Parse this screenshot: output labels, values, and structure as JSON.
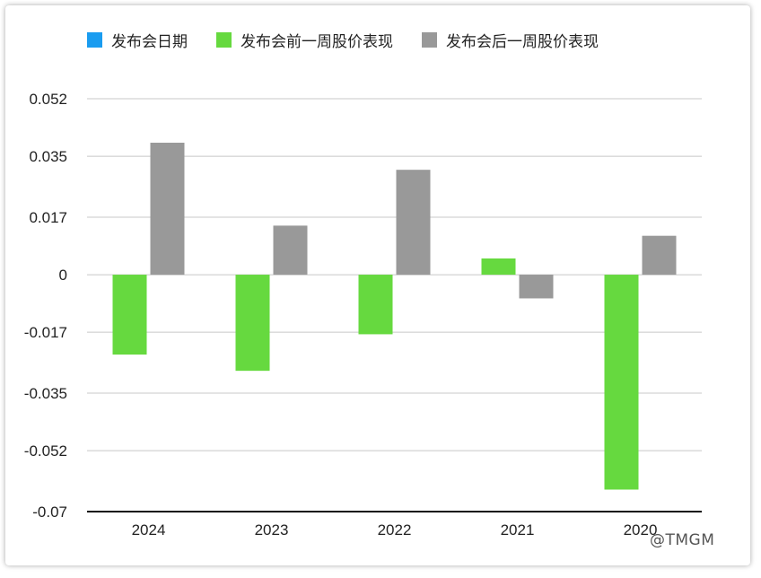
{
  "legend": {
    "items": [
      {
        "label": "发布会日期",
        "color": "#1a9cf0"
      },
      {
        "label": "发布会前一周股价表现",
        "color": "#66d93f"
      },
      {
        "label": "发布会后一周股价表现",
        "color": "#999999"
      }
    ]
  },
  "watermark": "@TMGM",
  "chart_data": {
    "type": "bar",
    "categories": [
      "2024",
      "2023",
      "2022",
      "2021",
      "2020"
    ],
    "series": [
      {
        "name": "发布会前一周股价表现",
        "color": "#66d93f",
        "values": [
          -0.0236,
          -0.0284,
          -0.0176,
          0.0048,
          -0.0635
        ]
      },
      {
        "name": "发布会后一周股价表现",
        "color": "#999999",
        "values": [
          0.039,
          0.0145,
          0.031,
          -0.007,
          0.0115
        ]
      }
    ],
    "yticks": [
      "0.052",
      "0.035",
      "0.017",
      "0",
      "-0.017",
      "-0.035",
      "-0.052",
      "-0.07"
    ],
    "ylim": [
      -0.07,
      0.052
    ],
    "grid": true,
    "legend_position": "top-left"
  }
}
